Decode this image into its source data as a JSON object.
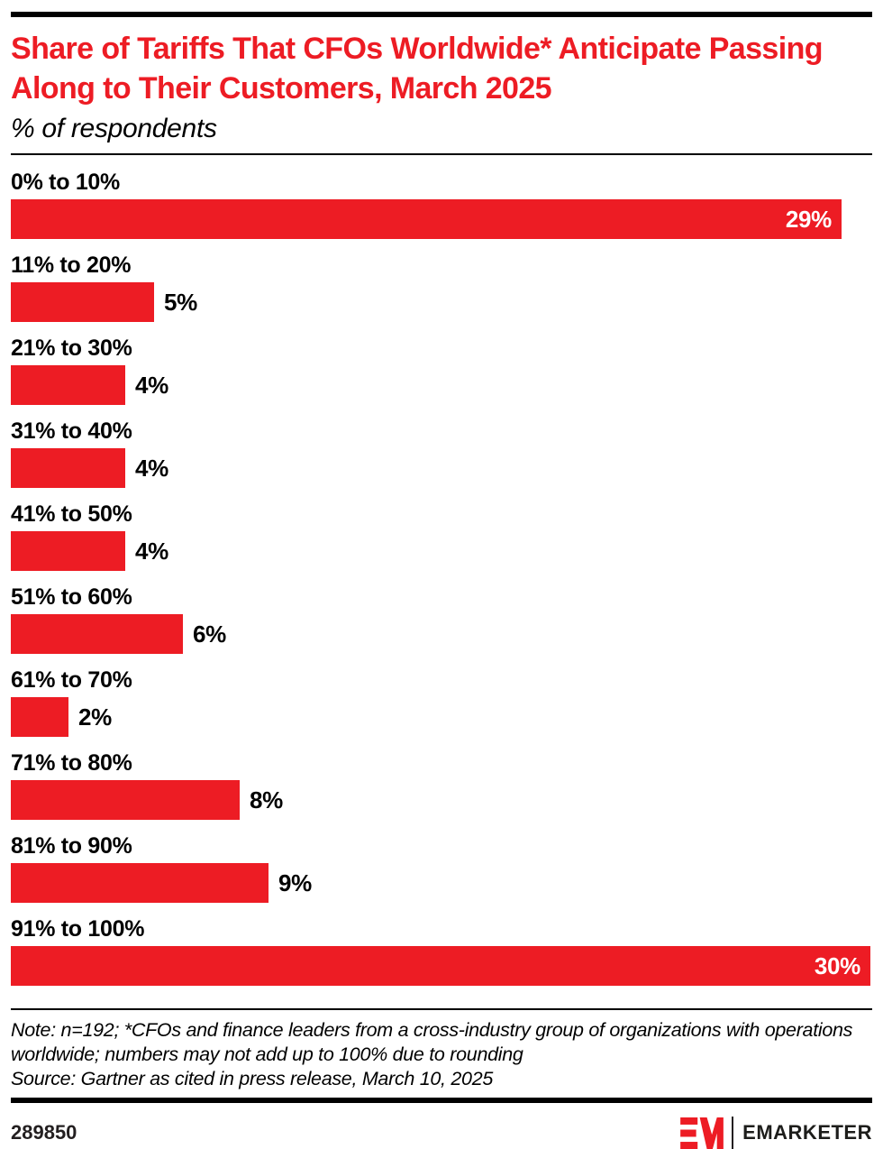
{
  "header": {
    "title": "Share of Tariffs That CFOs Worldwide* Anticipate Passing Along to Their Customers, March 2025",
    "subtitle": "% of respondents"
  },
  "chart_data": {
    "type": "bar",
    "orientation": "horizontal",
    "title": "Share of Tariffs That CFOs Worldwide* Anticipate Passing Along to Their Customers, March 2025",
    "subtitle": "% of respondents",
    "unit": "%",
    "categories": [
      "0% to 10%",
      "11% to 20%",
      "21% to 30%",
      "31% to 40%",
      "41% to 50%",
      "51% to 60%",
      "61% to 70%",
      "71% to 80%",
      "81% to 90%",
      "91% to 100%"
    ],
    "values": [
      29,
      5,
      4,
      4,
      4,
      6,
      2,
      8,
      9,
      30
    ],
    "value_labels": [
      "29%",
      "5%",
      "4%",
      "4%",
      "4%",
      "6%",
      "2%",
      "8%",
      "9%",
      "30%"
    ],
    "xlim": [
      0,
      30
    ],
    "grid": false,
    "legend": false,
    "bar_color": "#ED1C24",
    "value_label_inside_threshold": 20
  },
  "footnote": {
    "note": "Note: n=192; *CFOs and finance leaders from a cross-industry group of organizations with operations worldwide; numbers may not add up to 100% due to rounding",
    "source": "Source: Gartner as cited in press release, March 10, 2025"
  },
  "footer": {
    "chart_id": "289850",
    "brand_name": "EMARKETER",
    "logo_icon": "emarketer-em-logo"
  },
  "colors": {
    "accent_red": "#ED1C24",
    "text_black": "#000000",
    "value_label_inside": "#FFFFFF"
  }
}
